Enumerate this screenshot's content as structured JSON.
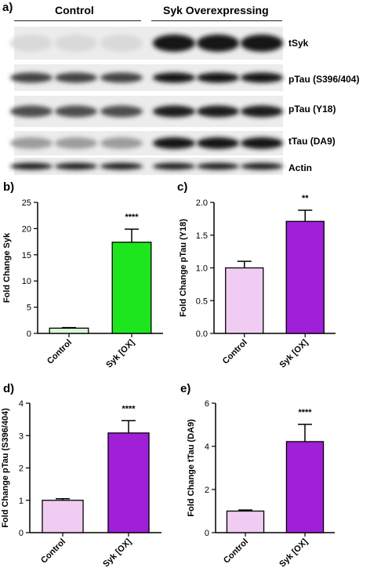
{
  "panel_a": {
    "letter": "a)",
    "groups": [
      "Control",
      "Syk Overexpressing"
    ],
    "bands": [
      {
        "label": "tSyk",
        "control_intensity": 0.08,
        "ox_intensity": 0.95
      },
      {
        "label": "pTau (S396/404)",
        "control_intensity": 0.75,
        "ox_intensity": 0.95
      },
      {
        "label": "pTau (Y18)",
        "control_intensity": 0.7,
        "ox_intensity": 0.92
      },
      {
        "label": "tTau (DA9)",
        "control_intensity": 0.35,
        "ox_intensity": 0.95
      },
      {
        "label": "Actin",
        "control_intensity": 0.9,
        "ox_intensity": 0.9
      }
    ]
  },
  "chart_data": [
    {
      "panel": "b)",
      "type": "bar",
      "categories": [
        "Control",
        "Syk [OX]"
      ],
      "values": [
        1.0,
        17.4
      ],
      "errors": [
        0.1,
        2.5
      ],
      "colors": [
        "#d9f7d9",
        "#1ee61e"
      ],
      "ylabel": "Fold Change Syk",
      "xlabel": "",
      "title": "",
      "ylim": [
        0,
        25
      ],
      "yticks": [
        "0",
        "5",
        "10",
        "15",
        "20",
        "25"
      ],
      "significance": "****"
    },
    {
      "panel": "c)",
      "type": "bar",
      "categories": [
        "Control",
        "Syk [OX]"
      ],
      "values": [
        1.0,
        1.71
      ],
      "errors": [
        0.1,
        0.17
      ],
      "colors": [
        "#f0ccf2",
        "#a020d8"
      ],
      "ylabel": "Fold Change pTau (Y18)",
      "xlabel": "",
      "title": "",
      "ylim": [
        0,
        2.0
      ],
      "yticks": [
        "0.0",
        "0.5",
        "1.0",
        "1.5",
        "2.0"
      ],
      "significance": "**"
    },
    {
      "panel": "d)",
      "type": "bar",
      "categories": [
        "Control",
        "Syk [OX]"
      ],
      "values": [
        1.0,
        3.08
      ],
      "errors": [
        0.05,
        0.38
      ],
      "colors": [
        "#f0ccf2",
        "#a020d8"
      ],
      "ylabel": "Fold Change pTau (S396/404)",
      "xlabel": "",
      "title": "",
      "ylim": [
        0,
        4
      ],
      "yticks": [
        "0",
        "1",
        "2",
        "3",
        "4"
      ],
      "significance": "****"
    },
    {
      "panel": "e)",
      "type": "bar",
      "categories": [
        "Control",
        "Syk [OX]"
      ],
      "values": [
        1.0,
        4.22
      ],
      "errors": [
        0.05,
        0.8
      ],
      "colors": [
        "#f0ccf2",
        "#a020d8"
      ],
      "ylabel": "Fold Change tTau (DA9)",
      "xlabel": "",
      "title": "",
      "ylim": [
        0,
        6
      ],
      "yticks": [
        "0",
        "2",
        "4",
        "6"
      ],
      "significance": "****"
    }
  ]
}
